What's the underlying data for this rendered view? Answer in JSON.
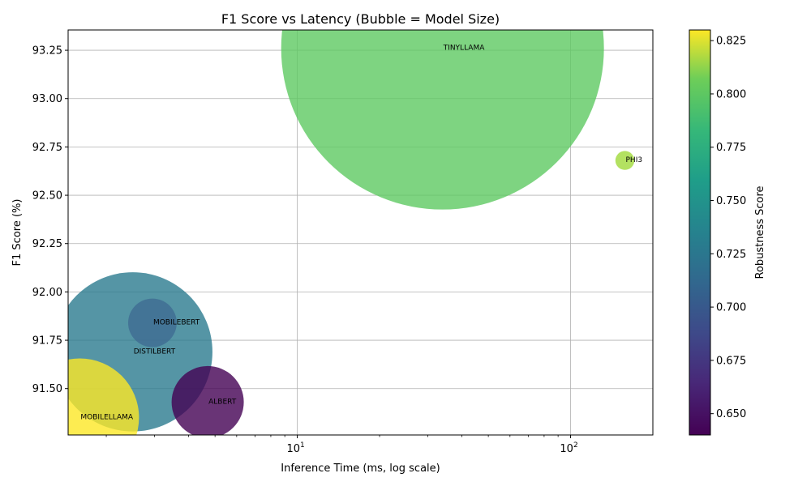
{
  "chart_data": {
    "type": "scatter",
    "title": "F1 Score vs Latency (Bubble = Model Size)",
    "xlabel": "Inference Time (ms, log scale)",
    "ylabel": "F1 Score (%)",
    "x_scale": "log",
    "xlim": [
      1.45,
      200
    ],
    "ylim": [
      91.26,
      93.355
    ],
    "grid": true,
    "x_ticks": [
      {
        "value": 10,
        "base": "10",
        "exp": "1"
      },
      {
        "value": 100,
        "base": "10",
        "exp": "2"
      }
    ],
    "y_ticks": [
      91.5,
      91.75,
      92.0,
      92.25,
      92.5,
      92.75,
      93.0,
      93.25
    ],
    "y_tick_labels": [
      "91.50",
      "91.75",
      "92.00",
      "92.25",
      "92.50",
      "92.75",
      "93.00",
      "93.25"
    ],
    "colorbar": {
      "label": "Robustness Score",
      "range": [
        0.64,
        0.83
      ],
      "ticks": [
        0.65,
        0.675,
        0.7,
        0.725,
        0.75,
        0.775,
        0.8,
        0.825
      ],
      "tick_labels": [
        "0.650",
        "0.675",
        "0.700",
        "0.725",
        "0.750",
        "0.775",
        "0.800",
        "0.825"
      ]
    },
    "points": [
      {
        "label": "TINYLLAMA",
        "x": 34,
        "y": 93.26,
        "size": 1100,
        "robustness": 0.765,
        "color": "#5ec962"
      },
      {
        "label": "PHI3",
        "x": 158,
        "y": 92.68,
        "size": 3.8,
        "robustness": 0.79,
        "color": "#a0da39"
      },
      {
        "label": "MOBILEBERT",
        "x": 2.95,
        "y": 91.84,
        "size": 24.9,
        "robustness": 0.71,
        "color": "#3e6b92"
      },
      {
        "label": "DISTILBERT",
        "x": 2.5,
        "y": 91.69,
        "size": 268,
        "robustness": 0.722,
        "color": "#2a7b8e"
      },
      {
        "label": "ALBERT",
        "x": 4.7,
        "y": 91.43,
        "size": 55,
        "robustness": 0.64,
        "color": "#440154"
      },
      {
        "label": "MOBILELLAMA",
        "x": 1.6,
        "y": 91.35,
        "size": 148,
        "robustness": 0.83,
        "color": "#fde725"
      }
    ]
  }
}
